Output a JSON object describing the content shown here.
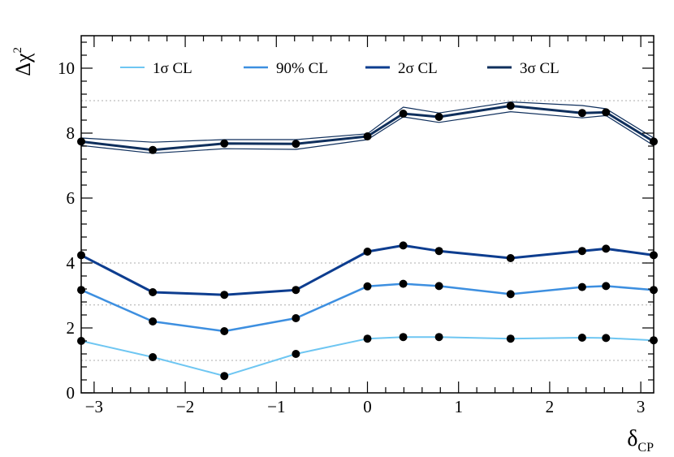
{
  "chart_data": {
    "type": "line",
    "xlabel": "δ_CP",
    "xlabel_main": "δ",
    "xlabel_sub": "CP",
    "ylabel": "Δχ²",
    "ylabel_main": "Δχ",
    "ylabel_sup": "2",
    "xlim": [
      -3.1416,
      3.1416
    ],
    "ylim": [
      0,
      11
    ],
    "x_ticks": [
      -3,
      -2,
      -1,
      0,
      1,
      2,
      3
    ],
    "x_tick_labels": [
      "−3",
      "−2",
      "−1",
      "0",
      "1",
      "2",
      "3"
    ],
    "y_ticks": [
      0,
      2,
      4,
      6,
      8,
      10
    ],
    "y_tick_labels": [
      "0",
      "2",
      "4",
      "6",
      "8",
      "10"
    ],
    "reference_lines": [
      1.0,
      2.71,
      4.0,
      9.0
    ],
    "grid": false,
    "legend_position": "top",
    "x": [
      -3.1416,
      -2.3562,
      -1.5708,
      -0.7854,
      0.0,
      0.3927,
      0.7854,
      1.5708,
      2.3562,
      2.618,
      3.1416
    ],
    "series": [
      {
        "name": "1σ CL",
        "color": "#6ec6f2",
        "width": 2,
        "values": [
          1.6,
          1.1,
          0.52,
          1.2,
          1.67,
          1.72,
          1.72,
          1.67,
          1.7,
          1.69,
          1.62
        ]
      },
      {
        "name": "90% CL",
        "color": "#3d8fe0",
        "width": 2.5,
        "values": [
          3.17,
          2.2,
          1.9,
          2.3,
          3.28,
          3.36,
          3.29,
          3.04,
          3.26,
          3.29,
          3.17
        ]
      },
      {
        "name": "2σ CL",
        "color": "#0d3d8f",
        "width": 3,
        "values": [
          4.24,
          3.1,
          3.02,
          3.17,
          4.35,
          4.54,
          4.37,
          4.15,
          4.37,
          4.44,
          4.24
        ]
      },
      {
        "name": "3σ CL",
        "color": "#0f2f5c",
        "width": 3,
        "values": [
          7.74,
          7.48,
          7.68,
          7.67,
          7.9,
          8.6,
          8.5,
          8.84,
          8.62,
          8.64,
          7.74
        ],
        "band_upper": [
          7.85,
          7.72,
          7.8,
          7.8,
          7.98,
          8.8,
          8.62,
          8.96,
          8.85,
          8.75,
          7.85
        ],
        "band_lower": [
          7.62,
          7.38,
          7.52,
          7.5,
          7.8,
          8.5,
          8.33,
          8.66,
          8.47,
          8.54,
          7.62
        ]
      }
    ]
  }
}
